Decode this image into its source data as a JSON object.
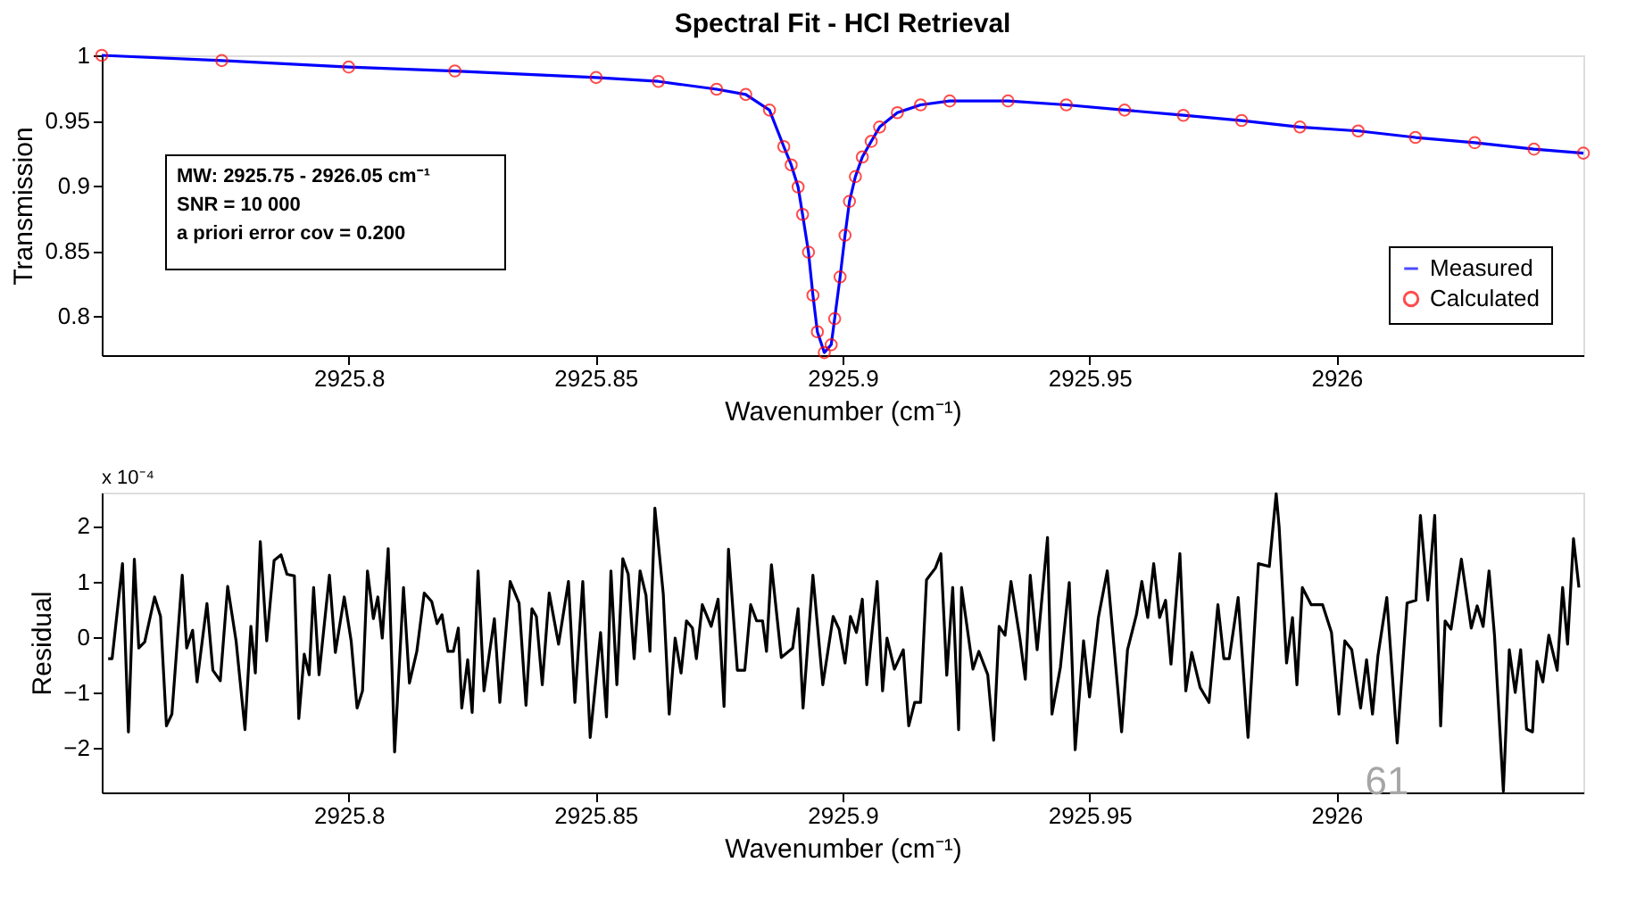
{
  "chart_data": [
    {
      "type": "line",
      "title": "Spectral Fit - HCl Retrieval",
      "xlabel": "Wavenumber (cm⁻¹)",
      "ylabel": "Transmission",
      "xlim": [
        2925.75,
        2926.05
      ],
      "xticks": [
        2925.8,
        2925.85,
        2925.9,
        2925.95,
        2926
      ],
      "ylim": [
        0.77,
        1.0
      ],
      "yticks": [
        0.8,
        0.85,
        0.9,
        0.95,
        1
      ],
      "grid": false,
      "legend": "bottom right",
      "x": [
        2925.75,
        2925.7743,
        2925.8,
        2925.8215,
        2925.8501,
        2925.8627,
        2925.8745,
        2925.8804,
        2925.8852,
        2925.8881,
        2925.8896,
        2925.891,
        2925.8919,
        2925.8931,
        2925.894,
        2925.8949,
        2925.8963,
        2925.8977,
        2925.8984,
        2925.8995,
        2925.9005,
        2925.9014,
        2925.9026,
        2925.904,
        2925.9058,
        2925.9075,
        2925.9111,
        2925.9158,
        2925.9217,
        2925.9335,
        2925.9453,
        2925.9571,
        2925.969,
        2925.9808,
        2925.9926,
        2926.0044,
        2926.016,
        2926.028,
        2926.04,
        2926.05
      ],
      "annotations": [
        "MW: 2925.75 - 2926.05 cm⁻¹",
        "SNR = 10 000",
        "a priori error cov = 0.200"
      ],
      "series": [
        {
          "name": "Measured",
          "color": "#0000ff",
          "marker": "none",
          "line_style": "solid",
          "values": [
            1.0,
            0.996,
            0.991,
            0.988,
            0.983,
            0.98,
            0.974,
            0.97,
            0.958,
            0.93,
            0.916,
            0.899,
            0.878,
            0.849,
            0.816,
            0.788,
            0.772,
            0.778,
            0.798,
            0.83,
            0.862,
            0.888,
            0.907,
            0.922,
            0.934,
            0.945,
            0.956,
            0.962,
            0.965,
            0.965,
            0.962,
            0.958,
            0.954,
            0.95,
            0.945,
            0.942,
            0.937,
            0.933,
            0.928,
            0.925
          ]
        },
        {
          "name": "Calculated",
          "type": "scatter",
          "color": "#ff0000",
          "marker": "circle",
          "values": [
            1.0,
            0.996,
            0.991,
            0.988,
            0.983,
            0.98,
            0.974,
            0.97,
            0.958,
            0.93,
            0.916,
            0.899,
            0.878,
            0.849,
            0.816,
            0.788,
            0.772,
            0.778,
            0.798,
            0.83,
            0.862,
            0.888,
            0.907,
            0.922,
            0.934,
            0.945,
            0.956,
            0.962,
            0.965,
            0.965,
            0.962,
            0.958,
            0.954,
            0.95,
            0.945,
            0.942,
            0.937,
            0.933,
            0.928,
            0.925
          ]
        }
      ]
    },
    {
      "type": "line",
      "xlabel": "Wavenumber (cm⁻¹)",
      "ylabel": "Residual",
      "xlim": [
        2925.75,
        2926.05
      ],
      "xticks": [
        2925.8,
        2925.85,
        2925.9,
        2925.95,
        2926
      ],
      "ylim": [
        -2.8,
        2.6
      ],
      "yticks": [
        -2,
        -1,
        0,
        1,
        2
      ],
      "grid": false,
      "legend": false,
      "annotations": [
        "x 10⁻⁴",
        "61"
      ],
      "x": [
        2925.7513,
        2925.7521,
        2925.7542,
        2925.7554,
        2925.7566,
        2925.7575,
        2925.7587,
        2925.7607,
        2925.7619,
        2925.7631,
        2925.7642,
        2925.7663,
        2925.7672,
        2925.7684,
        2925.7693,
        2925.7713,
        2925.7725,
        2925.774,
        2925.7755,
        2925.7772,
        2925.779,
        2925.7802,
        2925.7811,
        2925.7821,
        2925.7834,
        2925.7849,
        2925.7863,
        2925.7875,
        2925.789,
        2925.7899,
        2925.791,
        2925.792,
        2925.7929,
        2925.794,
        2925.7961,
        2925.7973,
        2925.7991,
        2925.8005,
        2925.8017,
        2925.8028,
        2925.8038,
        2925.805,
        2925.8059,
        2925.8068,
        2925.808,
        2925.8093,
        2925.8111,
        2925.8123,
        2925.8138,
        2925.8153,
        2925.8168,
        2925.8179,
        2925.8189,
        2925.8201,
        2925.8212,
        2925.8222,
        2925.8229,
        2925.8241,
        2925.825,
        2925.8262,
        2925.8274,
        2925.8295,
        2925.8306,
        2925.8327,
        2925.8345,
        2925.8359,
        2925.8371,
        2925.838,
        2925.8392,
        2925.8406,
        2925.8425,
        2925.8445,
        2925.8458,
        2925.8474,
        2925.8489,
        2925.851,
        2925.8522,
        2925.8531,
        2925.8543,
        2925.8555,
        2925.8566,
        2925.8578,
        2925.859,
        2925.8602,
        2925.861,
        2925.862,
        2925.8637,
        2925.8649,
        2925.8661,
        2925.8673,
        2925.8684,
        2925.8696,
        2925.8704,
        2925.8716,
        2925.8734,
        2925.8748,
        2925.876,
        2925.8769,
        2925.8787,
        2925.8802,
        2925.8814,
        2925.8826,
        2925.8838,
        2925.8846,
        2925.8856,
        2925.8876,
        2925.8899,
        2925.891,
        2925.892,
        2925.894,
        2925.896,
        2925.8981,
        2925.8993,
        2925.9005,
        2925.9016,
        2925.9028,
        2925.904,
        2925.9049,
        2925.907,
        2925.9081,
        2925.909,
        2925.9105,
        2925.9123,
        2925.9134,
        2925.9146,
        2925.9158,
        2925.917,
        2925.9188,
        2925.9199,
        2925.9211,
        2925.9223,
        2925.9235,
        2925.9241,
        2925.9264,
        2925.9276,
        2925.9294,
        2925.9306,
        2925.9317,
        2925.9329,
        2925.9341,
        2925.9359,
        2925.937,
        2925.938,
        2925.9394,
        2925.9415,
        2925.9424,
        2925.9441,
        2925.9459,
        2925.9471,
        2925.9488,
        2925.95,
        2925.9518,
        2925.9536,
        2925.9565,
        2925.9577,
        2925.9595,
        2925.9606,
        2925.9618,
        2925.963,
        2925.9642,
        2925.9654,
        2925.9665,
        2925.9683,
        2925.9695,
        2925.9707,
        2925.9724,
        2925.9742,
        2925.976,
        2925.9772,
        2925.9783,
        2925.9801,
        2925.9821,
        2925.9842,
        2925.9864,
        2925.9878,
        2925.9884,
        2925.9899,
        2925.9911,
        2925.992,
        2925.9931,
        2925.9949,
        2925.9972,
        2925.999,
        2926.0005,
        2926.0017,
        2926.0031,
        2926.0049,
        2926.0061,
        2926.0073,
        2926.0084,
        2926.0102,
        2926.0123,
        2926.0143,
        2926.0161,
        2926.017,
        2926.0185,
        2926.0199,
        2926.0211,
        2926.022,
        2926.0232,
        2926.0253,
        2926.0273,
        2926.0285,
        2926.0297,
        2926.0309,
        2926.032,
        2926.0338,
        2926.035,
        2926.0362,
        2926.0373,
        2926.0385,
        2926.0397,
        2926.0406,
        2926.0418,
        2926.043,
        2926.0447,
        2926.0458,
        2926.0468,
        2926.048,
        2926.0491
      ],
      "series": [
        {
          "color": "#000000",
          "marker": "none",
          "line_style": "solid",
          "values": [
            -0.39,
            -0.39,
            1.32,
            -1.71,
            1.4,
            -0.2,
            -0.09,
            0.72,
            0.37,
            -1.6,
            -1.39,
            1.11,
            -0.2,
            0.12,
            -0.81,
            0.6,
            -0.6,
            -0.79,
            0.91,
            -0.07,
            -1.67,
            0.19,
            -0.65,
            1.72,
            -0.07,
            1.38,
            1.48,
            1.13,
            1.1,
            -1.47,
            -0.31,
            -0.68,
            0.89,
            -0.68,
            1.11,
            -0.28,
            0.72,
            -0.07,
            -1.28,
            -0.97,
            1.19,
            0.33,
            0.72,
            -0.02,
            1.59,
            -2.07,
            0.89,
            -0.83,
            -0.26,
            0.79,
            0.64,
            0.24,
            0.4,
            -0.26,
            -0.26,
            0.16,
            -1.28,
            -0.41,
            -1.36,
            1.19,
            -0.97,
            0.33,
            -1.18,
            1.0,
            0.61,
            -1.23,
            0.51,
            0.37,
            -0.86,
            0.79,
            -0.13,
            1.0,
            -1.18,
            1.0,
            -1.81,
            0.08,
            -1.44,
            1.19,
            -0.86,
            1.41,
            1.13,
            -0.39,
            1.19,
            0.75,
            -0.26,
            2.32,
            0.77,
            -1.39,
            -0.02,
            -0.65,
            0.29,
            0.16,
            -0.39,
            0.58,
            0.19,
            0.68,
            -1.25,
            1.58,
            -0.6,
            -0.6,
            0.58,
            0.29,
            0.29,
            -0.26,
            1.3,
            -0.37,
            -0.2,
            0.51,
            -1.28,
            1.11,
            -0.86,
            0.37,
            0.14,
            -0.47,
            0.37,
            0.08,
            0.68,
            -0.86,
            1.0,
            -0.97,
            -0.02,
            -0.58,
            -0.23,
            -1.6,
            -1.18,
            -1.18,
            1.03,
            1.24,
            1.5,
            -0.69,
            0.89,
            -1.67,
            0.89,
            -0.58,
            -0.26,
            -0.68,
            -1.86,
            0.19,
            0.03,
            1.0,
            -0.02,
            -0.76,
            1.11,
            -0.23,
            1.79,
            -1.39,
            -0.55,
            0.98,
            -2.03,
            -0.07,
            -1.08,
            0.35,
            1.19,
            -1.71,
            -0.23,
            0.4,
            1.0,
            0.35,
            1.32,
            0.35,
            0.66,
            -0.49,
            1.5,
            -0.97,
            -0.28,
            -0.91,
            -1.18,
            0.58,
            -0.39,
            -0.39,
            0.71,
            -1.81,
            1.32,
            1.27,
            2.58,
            1.98,
            -0.47,
            0.35,
            -0.86,
            0.89,
            0.58,
            0.58,
            0.08,
            -1.39,
            -0.07,
            -0.23,
            -1.28,
            -0.41,
            -1.39,
            -0.34,
            0.71,
            -1.91,
            0.61,
            0.66,
            2.19,
            0.66,
            2.19,
            -1.6,
            0.29,
            0.14,
            1.4,
            0.16,
            0.56,
            0.19,
            1.19,
            0.03,
            -2.78,
            -0.23,
            -1.0,
            -0.23,
            -1.66,
            -1.71,
            -0.44,
            -0.81,
            0.03,
            -0.6,
            0.89,
            -0.13,
            1.77,
            0.89
          ]
        }
      ]
    }
  ]
}
